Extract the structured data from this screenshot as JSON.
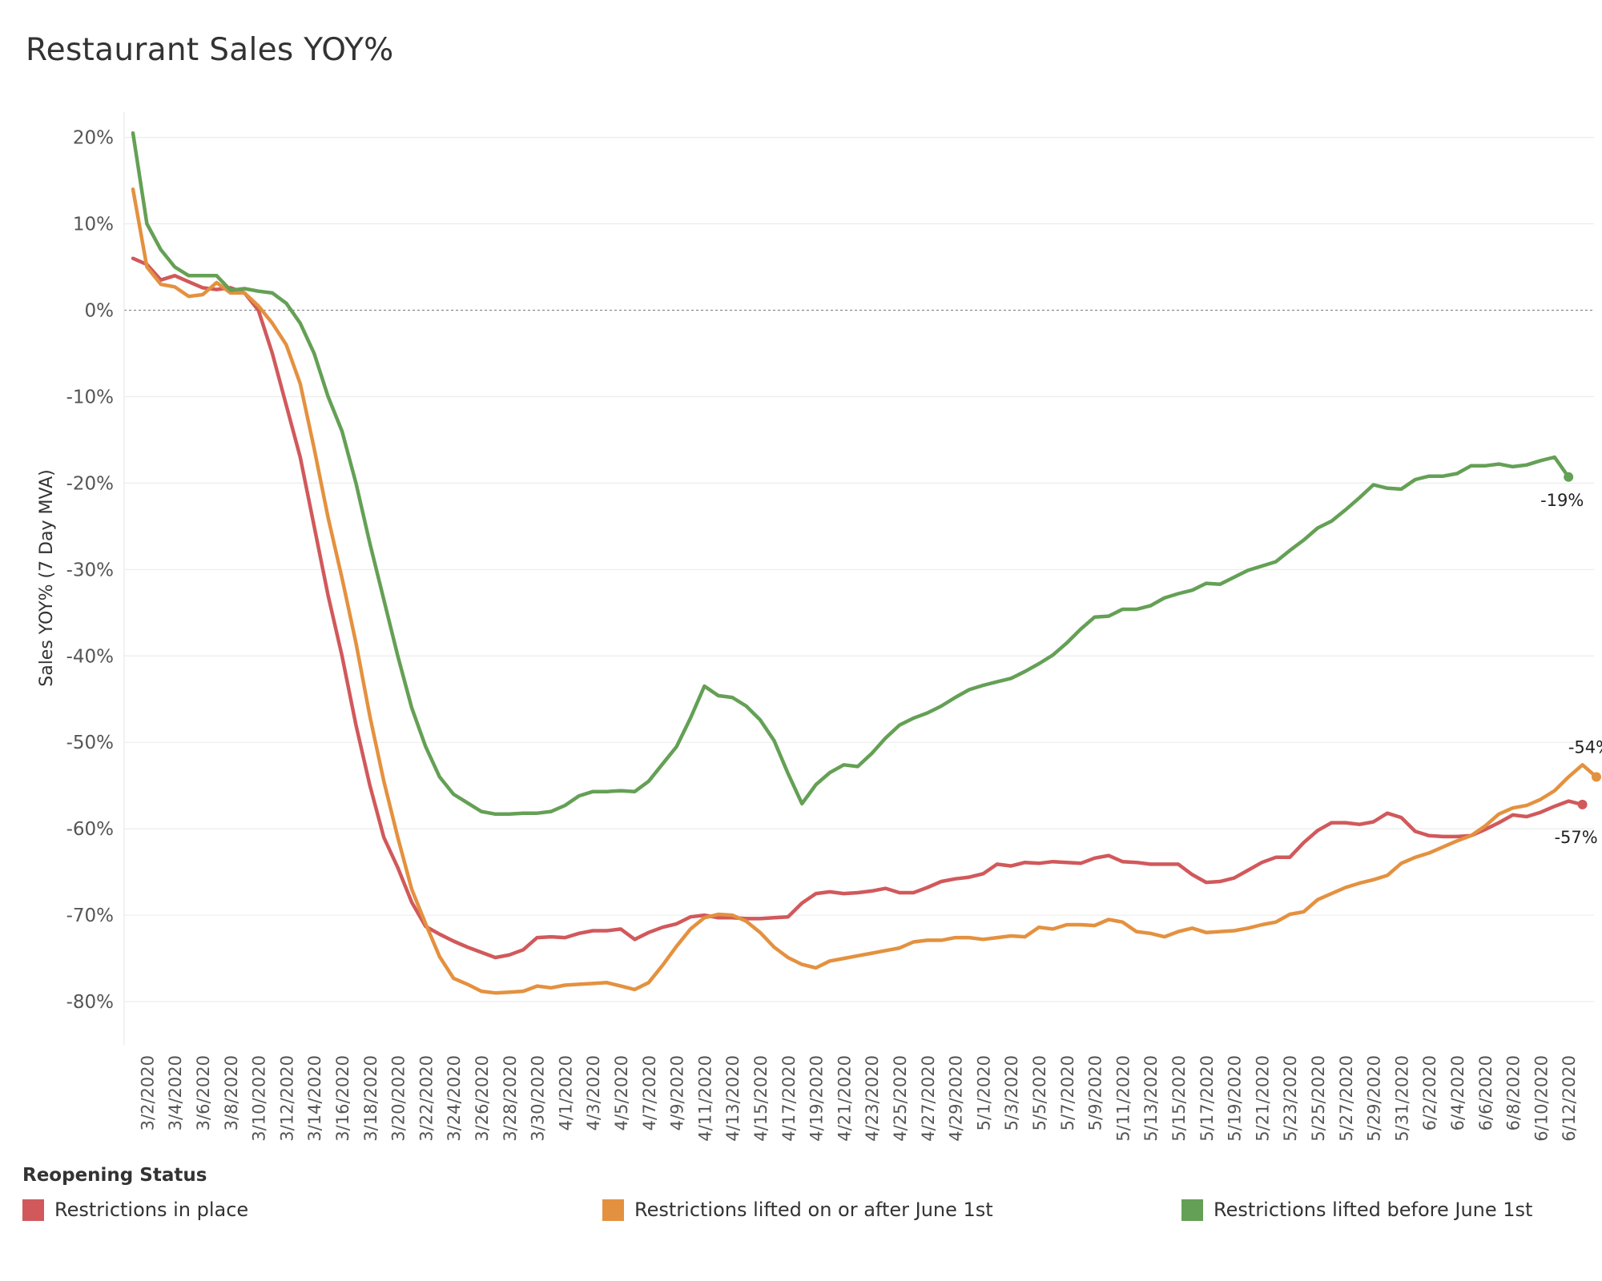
{
  "chart_data": {
    "type": "line",
    "title": "Restaurant Sales YOY%",
    "xlabel": "",
    "ylabel": "Sales YOY% (7 Day MVA)",
    "ylim": [
      -85,
      22
    ],
    "yticks": [
      20,
      10,
      0,
      -10,
      -20,
      -30,
      -40,
      -50,
      -60,
      -70,
      -80
    ],
    "ytick_labels": [
      "20%",
      "10%",
      "0%",
      "-10%",
      "-20%",
      "-30%",
      "-40%",
      "-50%",
      "-60%",
      "-70%",
      "-80%"
    ],
    "xtick_labels": [
      "3/2/2020",
      "3/4/2020",
      "3/6/2020",
      "3/8/2020",
      "3/10/2020",
      "3/12/2020",
      "3/14/2020",
      "3/16/2020",
      "3/18/2020",
      "3/20/2020",
      "3/22/2020",
      "3/24/2020",
      "3/26/2020",
      "3/28/2020",
      "3/30/2020",
      "4/1/2020",
      "4/3/2020",
      "4/5/2020",
      "4/7/2020",
      "4/9/2020",
      "4/11/2020",
      "4/13/2020",
      "4/15/2020",
      "4/17/2020",
      "4/19/2020",
      "4/21/2020",
      "4/23/2020",
      "4/25/2020",
      "4/27/2020",
      "4/29/2020",
      "5/1/2020",
      "5/3/2020",
      "5/5/2020",
      "5/7/2020",
      "5/9/2020",
      "5/11/2020",
      "5/13/2020",
      "5/15/2020",
      "5/17/2020",
      "5/19/2020",
      "5/21/2020",
      "5/23/2020",
      "5/25/2020",
      "5/27/2020",
      "5/29/2020",
      "5/31/2020",
      "6/2/2020",
      "6/4/2020",
      "6/6/2020",
      "6/8/2020",
      "6/10/2020",
      "6/12/2020"
    ],
    "x_start": "3/1/2020",
    "x_end": "6/14/2020",
    "zero_line": true,
    "grid": "horizontal",
    "legend_title": "Reopening Status",
    "legend_position": "bottom",
    "series": [
      {
        "name": "Restrictions in place",
        "color": "#d1595b",
        "end_label": "-57%",
        "values": [
          6,
          5.3,
          3.5,
          4,
          3.3,
          2.6,
          2.4,
          2.6,
          2,
          0,
          -5,
          -11,
          -17,
          -25,
          -33,
          -40,
          -48,
          -55,
          -61,
          -64.5,
          -68.5,
          -71.3,
          -72.2,
          -73,
          -73.7,
          -74.3,
          -74.9,
          -74.6,
          -74,
          -72.6,
          -72.5,
          -72.6,
          -72.1,
          -71.8,
          -71.8,
          -71.6,
          -72.8,
          -72,
          -71.4,
          -71,
          -70.2,
          -70,
          -70.3,
          -70.3,
          -70.4,
          -70.4,
          -70.3,
          -70.2,
          -68.6,
          -67.5,
          -67.3,
          -67.5,
          -67.4,
          -67.2,
          -66.9,
          -67.4,
          -67.4,
          -66.8,
          -66.1,
          -65.8,
          -65.6,
          -65.2,
          -64.1,
          -64.3,
          -63.9,
          -64,
          -63.8,
          -63.9,
          -64,
          -63.4,
          -63.1,
          -63.8,
          -63.9,
          -64.1,
          -64.1,
          -64.1,
          -65.3,
          -66.2,
          -66.1,
          -65.7,
          -64.8,
          -63.9,
          -63.3,
          -63.3,
          -61.6,
          -60.2,
          -59.3,
          -59.3,
          -59.5,
          -59.2,
          -58.2,
          -58.7,
          -60.3,
          -60.8,
          -60.9,
          -60.9,
          -60.8,
          -60.1,
          -59.3,
          -58.4,
          -58.6,
          -58.1,
          -57.4,
          -56.8,
          -57.2
        ]
      },
      {
        "name": "Restrictions lifted on or after June 1st",
        "color": "#e4913f",
        "end_label": "-54%",
        "values": [
          14,
          5,
          3,
          2.7,
          1.6,
          1.8,
          3.2,
          2,
          2,
          0.5,
          -1.5,
          -4,
          -8.5,
          -16,
          -24,
          -31,
          -38.5,
          -47,
          -54.5,
          -61,
          -67,
          -71,
          -74.8,
          -77.3,
          -78,
          -78.8,
          -79,
          -78.9,
          -78.8,
          -78.2,
          -78.4,
          -78.1,
          -78,
          -77.9,
          -77.8,
          -78.2,
          -78.6,
          -77.8,
          -75.8,
          -73.6,
          -71.6,
          -70.3,
          -69.9,
          -70,
          -70.7,
          -72,
          -73.7,
          -74.9,
          -75.7,
          -76.1,
          -75.3,
          -75,
          -74.7,
          -74.4,
          -74.1,
          -73.8,
          -73.1,
          -72.9,
          -72.9,
          -72.6,
          -72.6,
          -72.8,
          -72.6,
          -72.4,
          -72.5,
          -71.4,
          -71.6,
          -71.1,
          -71.1,
          -71.2,
          -70.5,
          -70.8,
          -71.9,
          -72.1,
          -72.5,
          -71.9,
          -71.5,
          -72,
          -71.9,
          -71.8,
          -71.5,
          -71.1,
          -70.8,
          -69.9,
          -69.6,
          -68.2,
          -67.5,
          -66.8,
          -66.3,
          -65.9,
          -65.4,
          -64,
          -63.3,
          -62.8,
          -62.1,
          -61.4,
          -60.8,
          -59.7,
          -58.3,
          -57.6,
          -57.3,
          -56.6,
          -55.6,
          -54,
          -52.6,
          -54
        ]
      },
      {
        "name": "Restrictions lifted before June 1st",
        "color": "#64a055",
        "end_label": "-19%",
        "values": [
          20.5,
          10,
          7,
          5,
          4,
          4,
          4,
          2.3,
          2.5,
          2.2,
          2,
          0.8,
          -1.5,
          -5,
          -10,
          -14,
          -20,
          -27,
          -33.5,
          -40,
          -46,
          -50.5,
          -54,
          -56,
          -57,
          -58,
          -58.3,
          -58.3,
          -58.2,
          -58.2,
          -58,
          -57.3,
          -56.2,
          -55.7,
          -55.7,
          -55.6,
          -55.7,
          -54.5,
          -52.5,
          -50.5,
          -47.2,
          -43.5,
          -44.6,
          -44.8,
          -45.8,
          -47.4,
          -49.8,
          -53.6,
          -57.1,
          -54.9,
          -53.5,
          -52.6,
          -52.8,
          -51.3,
          -49.5,
          -48,
          -47.2,
          -46.6,
          -45.8,
          -44.8,
          -43.9,
          -43.4,
          -43,
          -42.6,
          -41.8,
          -40.9,
          -39.9,
          -38.5,
          -36.9,
          -35.5,
          -35.4,
          -34.6,
          -34.6,
          -34.2,
          -33.3,
          -32.8,
          -32.4,
          -31.6,
          -31.7,
          -30.9,
          -30.1,
          -29.6,
          -29.1,
          -27.8,
          -26.6,
          -25.2,
          -24.4,
          -23.1,
          -21.7,
          -20.2,
          -20.6,
          -20.7,
          -19.6,
          -19.2,
          -19.2,
          -18.9,
          -18,
          -18,
          -17.8,
          -18.1,
          -17.9,
          -17.4,
          -17,
          -19.3
        ]
      }
    ]
  }
}
